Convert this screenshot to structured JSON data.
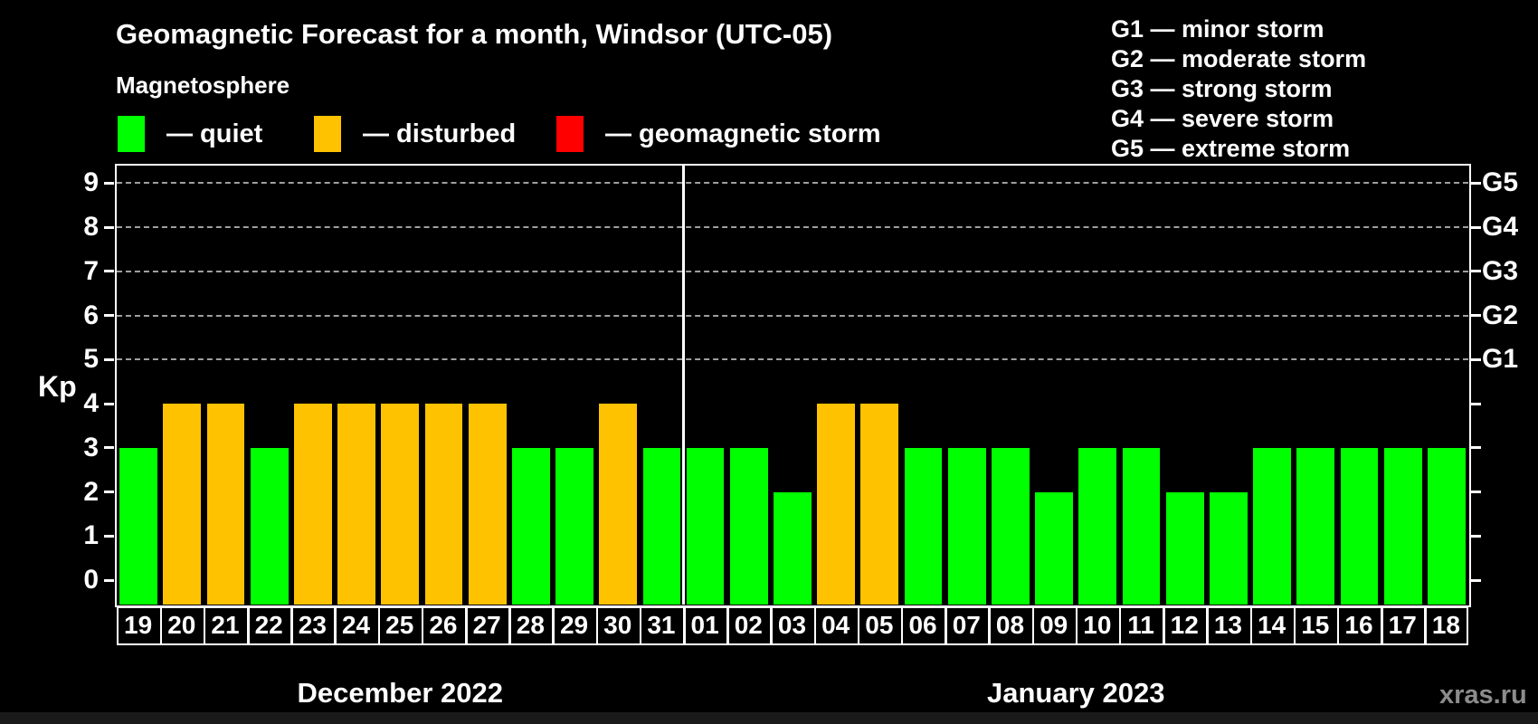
{
  "header": {
    "title": "Geomagnetic Forecast for a month, Windsor (UTC-05)",
    "subtitle": "Magnetosphere"
  },
  "legend": {
    "items": [
      {
        "label": "— quiet",
        "color": "#00ff00",
        "status": "quiet"
      },
      {
        "label": "— disturbed",
        "color": "#ffc200",
        "status": "disturbed"
      },
      {
        "label": "— geomagnetic storm",
        "color": "#ff0000",
        "status": "storm"
      }
    ]
  },
  "g_legend": {
    "lines": [
      "G1 — minor storm",
      "G2 — moderate storm",
      "G3 — strong storm",
      "G4 — severe storm",
      "G5 — extreme storm"
    ]
  },
  "watermark": "xras.ru",
  "chart_data": {
    "type": "bar",
    "title": "Geomagnetic Forecast for a month, Windsor (UTC-05)",
    "ylabel": "Kp",
    "ylim": [
      -0.55,
      9.4
    ],
    "y_ticks": [
      0,
      1,
      2,
      3,
      4,
      5,
      6,
      7,
      8,
      9
    ],
    "gridlines": [
      5,
      6,
      7,
      8,
      9
    ],
    "grid_style": "dashed horizontal lines at storm levels only",
    "right_axis": [
      {
        "kp": 5,
        "label": "G1"
      },
      {
        "kp": 6,
        "label": "G2"
      },
      {
        "kp": 7,
        "label": "G3"
      },
      {
        "kp": 8,
        "label": "G4"
      },
      {
        "kp": 9,
        "label": "G5"
      }
    ],
    "months": [
      {
        "label": "December 2022",
        "days": 13
      },
      {
        "label": "January 2023",
        "days": 18
      }
    ],
    "categories": [
      "19",
      "20",
      "21",
      "22",
      "23",
      "24",
      "25",
      "26",
      "27",
      "28",
      "29",
      "30",
      "31",
      "01",
      "02",
      "03",
      "04",
      "05",
      "06",
      "07",
      "08",
      "09",
      "10",
      "11",
      "12",
      "13",
      "14",
      "15",
      "16",
      "17",
      "18"
    ],
    "values": [
      3,
      4,
      4,
      3,
      4,
      4,
      4,
      4,
      4,
      3,
      3,
      4,
      3,
      3,
      3,
      2,
      4,
      4,
      3,
      3,
      3,
      2,
      3,
      3,
      2,
      2,
      3,
      3,
      3,
      3,
      3
    ],
    "statuses": [
      "quiet",
      "disturbed",
      "disturbed",
      "quiet",
      "disturbed",
      "disturbed",
      "disturbed",
      "disturbed",
      "disturbed",
      "quiet",
      "quiet",
      "disturbed",
      "quiet",
      "quiet",
      "quiet",
      "quiet",
      "disturbed",
      "disturbed",
      "quiet",
      "quiet",
      "quiet",
      "quiet",
      "quiet",
      "quiet",
      "quiet",
      "quiet",
      "quiet",
      "quiet",
      "quiet",
      "quiet",
      "quiet"
    ],
    "status_colors": {
      "quiet": "#00ff00",
      "disturbed": "#ffc200",
      "storm": "#ff0000"
    },
    "legend_position": "top"
  }
}
